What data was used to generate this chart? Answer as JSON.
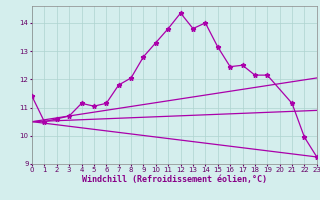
{
  "background_color": "#d4eeed",
  "grid_color": "#aed4d0",
  "line_color": "#aa00aa",
  "xlabel": "Windchill (Refroidissement éolien,°C)",
  "xlim": [
    0,
    23
  ],
  "ylim": [
    9,
    14.6
  ],
  "yticks": [
    9,
    10,
    11,
    12,
    13,
    14
  ],
  "xticks": [
    0,
    1,
    2,
    3,
    4,
    5,
    6,
    7,
    8,
    9,
    10,
    11,
    12,
    13,
    14,
    15,
    16,
    17,
    18,
    19,
    20,
    21,
    22,
    23
  ],
  "main_x": [
    0,
    1,
    2,
    3,
    4,
    5,
    6,
    7,
    8,
    9,
    10,
    11,
    12,
    13,
    14,
    15,
    16,
    17,
    18,
    19,
    21,
    22,
    23
  ],
  "main_y": [
    11.4,
    10.5,
    10.6,
    10.7,
    11.15,
    11.05,
    11.15,
    11.8,
    12.05,
    12.8,
    13.3,
    13.8,
    14.35,
    13.8,
    14.0,
    13.15,
    12.45,
    12.5,
    12.15,
    12.15,
    11.15,
    9.95,
    9.25
  ],
  "line2_x": [
    0,
    23
  ],
  "line2_y": [
    10.5,
    12.05
  ],
  "line3_x": [
    0,
    23
  ],
  "line3_y": [
    10.5,
    10.9
  ],
  "line4_x": [
    0,
    23
  ],
  "line4_y": [
    10.5,
    9.25
  ]
}
